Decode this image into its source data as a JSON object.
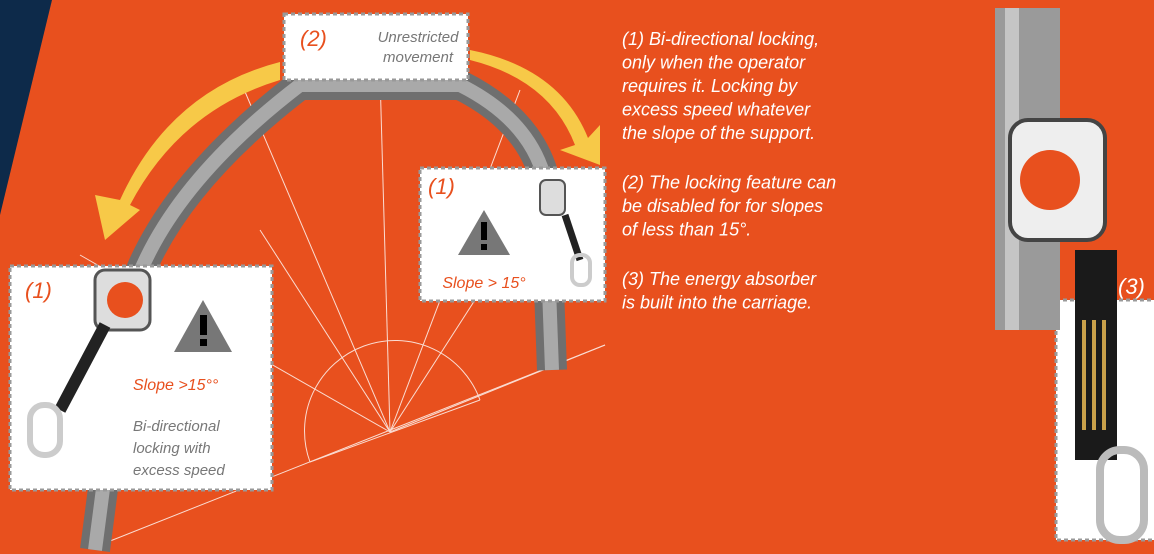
{
  "callouts": [
    {
      "number": "(2)",
      "lines": [
        "Unrestricted",
        "movement"
      ]
    },
    {
      "number": "(1)",
      "lines": [
        "Slope > 15°"
      ]
    },
    {
      "number": "(1)",
      "lines": [
        "Slope >15°°",
        "Bi-directional",
        "locking with",
        "excess speed"
      ]
    },
    {
      "number": "(3)"
    }
  ],
  "notes": [
    [
      "(1) Bi-directional locking,",
      "only when the operator",
      "requires it. Locking by",
      "excess speed whatever",
      "the slope of the support."
    ],
    [
      "(2) The locking feature can",
      "be disabled for for slopes",
      "of less than 15°."
    ],
    [
      "(3) The energy absorber",
      "is built into the carriage."
    ]
  ]
}
